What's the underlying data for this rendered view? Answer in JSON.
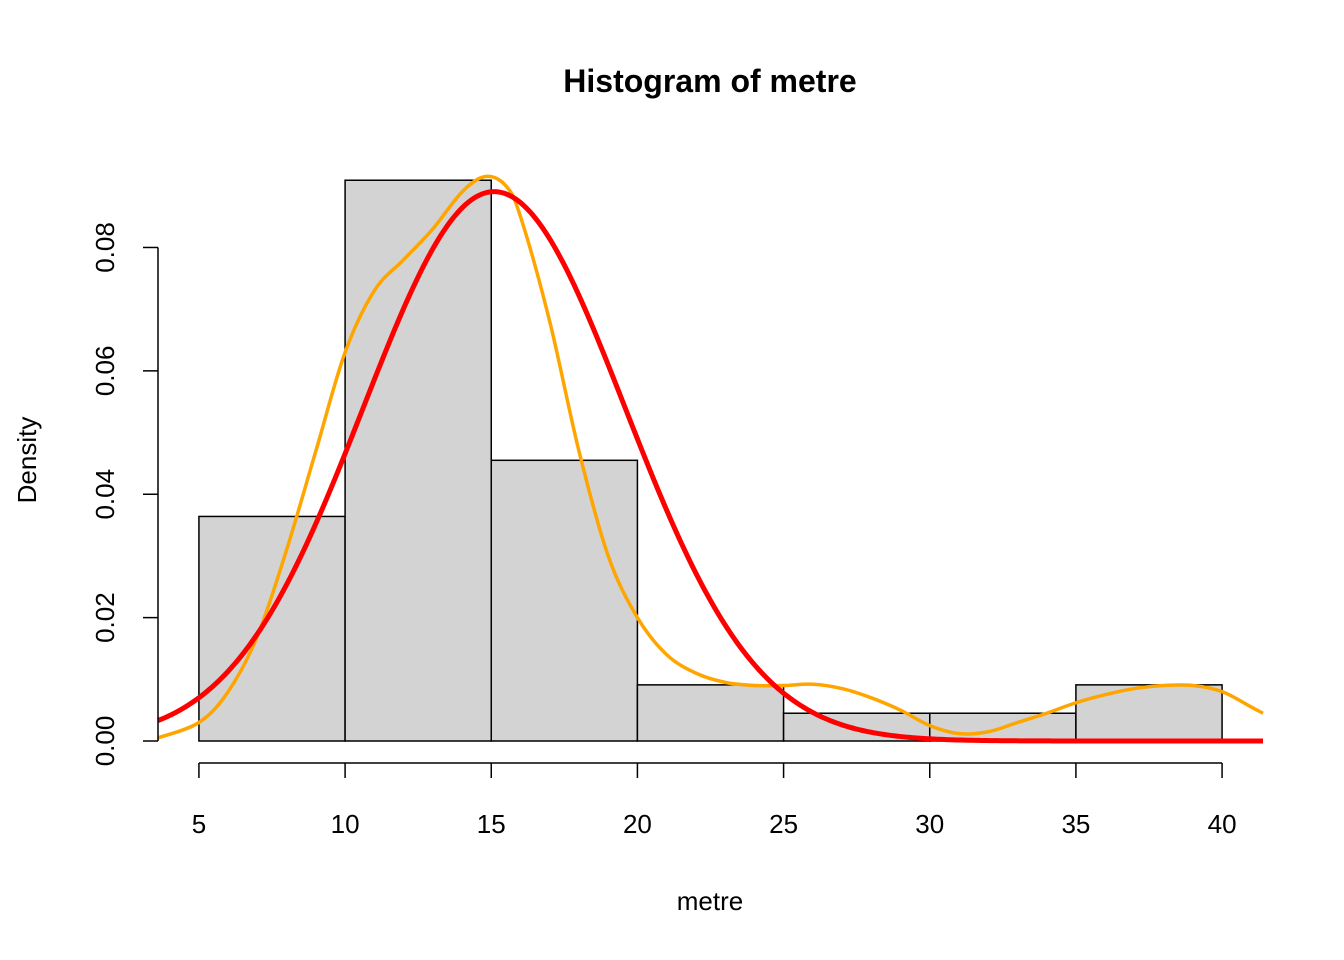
{
  "chart_data": {
    "type": "bar",
    "title": "Histogram of metre",
    "xlabel": "metre",
    "ylabel": "Density",
    "xlim": [
      3.6,
      41.4
    ],
    "ylim": [
      0,
      0.0911
    ],
    "x_ticks": [
      5,
      10,
      15,
      20,
      25,
      30,
      35,
      40
    ],
    "x_tick_labels": [
      "5",
      "10",
      "15",
      "20",
      "25",
      "30",
      "35",
      "40"
    ],
    "y_ticks": [
      0,
      0.02,
      0.04,
      0.06,
      0.08
    ],
    "y_tick_labels": [
      "0.00",
      "0.02",
      "0.04",
      "0.06",
      "0.08"
    ],
    "grid": false,
    "bins": [
      {
        "start": 5,
        "end": 10,
        "density": 0.0364
      },
      {
        "start": 10,
        "end": 15,
        "density": 0.0909
      },
      {
        "start": 15,
        "end": 20,
        "density": 0.0455
      },
      {
        "start": 20,
        "end": 25,
        "density": 0.0091
      },
      {
        "start": 25,
        "end": 30,
        "density": 0.0045
      },
      {
        "start": 30,
        "end": 35,
        "density": 0.0045
      },
      {
        "start": 35,
        "end": 40,
        "density": 0.0091
      }
    ],
    "bar_color": "#d3d3d3",
    "overlays": [
      {
        "kind": "kernel-density",
        "color": "#ffa500",
        "points": [
          [
            3.6,
            0.0005
          ],
          [
            5,
            0.003
          ],
          [
            6,
            0.008
          ],
          [
            7,
            0.017
          ],
          [
            8,
            0.031
          ],
          [
            9,
            0.047
          ],
          [
            10,
            0.063
          ],
          [
            11,
            0.073
          ],
          [
            12,
            0.078
          ],
          [
            13,
            0.083
          ],
          [
            14,
            0.089
          ],
          [
            14.8,
            0.0915
          ],
          [
            15.5,
            0.09
          ],
          [
            16,
            0.085
          ],
          [
            17,
            0.068
          ],
          [
            18,
            0.047
          ],
          [
            19,
            0.03
          ],
          [
            20,
            0.02
          ],
          [
            21,
            0.014
          ],
          [
            22,
            0.011
          ],
          [
            23,
            0.0095
          ],
          [
            24,
            0.009
          ],
          [
            25,
            0.009
          ],
          [
            26,
            0.0092
          ],
          [
            27,
            0.0085
          ],
          [
            28,
            0.007
          ],
          [
            29,
            0.005
          ],
          [
            30,
            0.0025
          ],
          [
            31,
            0.0012
          ],
          [
            32,
            0.0015
          ],
          [
            33,
            0.003
          ],
          [
            34,
            0.0045
          ],
          [
            35,
            0.0062
          ],
          [
            36,
            0.0075
          ],
          [
            37,
            0.0085
          ],
          [
            38,
            0.009
          ],
          [
            39,
            0.009
          ],
          [
            40,
            0.008
          ],
          [
            41,
            0.0055
          ],
          [
            41.4,
            0.0045
          ]
        ]
      },
      {
        "kind": "normal-fit",
        "color": "#ff0000",
        "mean": 15.1,
        "sd": 4.48
      }
    ]
  }
}
